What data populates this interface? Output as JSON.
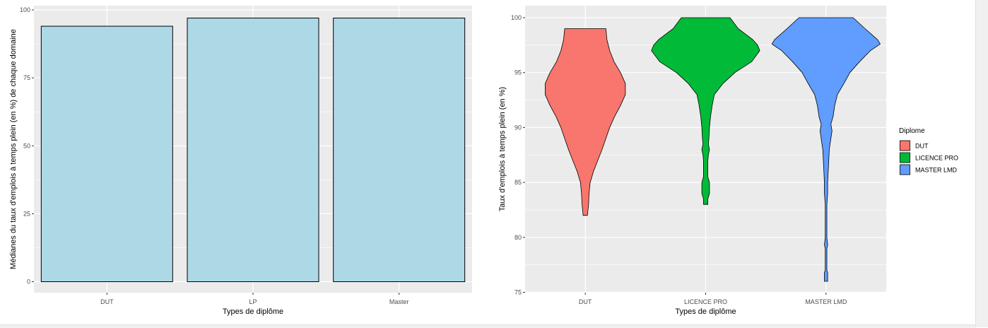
{
  "chart_data": [
    {
      "type": "bar",
      "xlabel": "Types de diplôme",
      "ylabel": "Médianes du taux d'emplois à temps plein (en %) de chaque domaine",
      "categories": [
        "DUT",
        "LP",
        "Master"
      ],
      "values": [
        94,
        97,
        97
      ],
      "ylim": [
        0,
        100
      ],
      "yticks": [
        0,
        25,
        50,
        75,
        100
      ],
      "grid": true,
      "bar_color": "#add8e6",
      "bar_outline": "#000000"
    },
    {
      "type": "violin",
      "xlabel": "Types de diplôme",
      "ylabel": "Taux d'emplois à temps plein (en %)",
      "categories": [
        "DUT",
        "LICENCE PRO",
        "MASTER LMD"
      ],
      "ylim": [
        75,
        100
      ],
      "yticks": [
        75,
        80,
        85,
        90,
        95,
        100
      ],
      "grid": true,
      "legend": {
        "title": "Diplome",
        "position": "right",
        "items": [
          {
            "label": "DUT",
            "color": "#F8766D"
          },
          {
            "label": "LICENCE PRO",
            "color": "#00BA38"
          },
          {
            "label": "MASTER LMD",
            "color": "#619CFF"
          }
        ]
      },
      "series": [
        {
          "name": "DUT",
          "color": "#F8766D",
          "profile": [
            [
              82,
              0.04
            ],
            [
              83,
              0.06
            ],
            [
              84,
              0.07
            ],
            [
              85,
              0.09
            ],
            [
              86,
              0.15
            ],
            [
              87,
              0.23
            ],
            [
              88,
              0.31
            ],
            [
              89,
              0.38
            ],
            [
              90,
              0.45
            ],
            [
              91,
              0.54
            ],
            [
              92,
              0.65
            ],
            [
              93,
              0.74
            ],
            [
              94,
              0.74
            ],
            [
              95,
              0.65
            ],
            [
              96,
              0.53
            ],
            [
              97,
              0.45
            ],
            [
              98,
              0.4
            ],
            [
              99,
              0.38
            ]
          ]
        },
        {
          "name": "LICENCE PRO",
          "color": "#00BA38",
          "profile": [
            [
              83,
              0.04
            ],
            [
              83.5,
              0.04
            ],
            [
              84,
              0.07
            ],
            [
              85,
              0.07
            ],
            [
              85.5,
              0.04
            ],
            [
              86,
              0.04
            ],
            [
              87,
              0.04
            ],
            [
              87.5,
              0.05
            ],
            [
              88,
              0.07
            ],
            [
              88.5,
              0.05
            ],
            [
              89,
              0.06
            ],
            [
              90,
              0.07
            ],
            [
              91,
              0.09
            ],
            [
              92,
              0.12
            ],
            [
              93,
              0.16
            ],
            [
              94,
              0.32
            ],
            [
              95,
              0.54
            ],
            [
              96,
              0.85
            ],
            [
              97,
              1.0
            ],
            [
              97.5,
              0.96
            ],
            [
              98,
              0.87
            ],
            [
              99,
              0.6
            ],
            [
              100,
              0.45
            ]
          ]
        },
        {
          "name": "MASTER LMD",
          "color": "#619CFF",
          "profile": [
            [
              76,
              0.03
            ],
            [
              76.8,
              0.03
            ],
            [
              77,
              0.015
            ],
            [
              79,
              0.015
            ],
            [
              79.3,
              0.03
            ],
            [
              80,
              0.015
            ],
            [
              83,
              0.015
            ],
            [
              84,
              0.03
            ],
            [
              85,
              0.03
            ],
            [
              86,
              0.04
            ],
            [
              87,
              0.05
            ],
            [
              88,
              0.06
            ],
            [
              89,
              0.09
            ],
            [
              89.7,
              0.11
            ],
            [
              90.3,
              0.09
            ],
            [
              91,
              0.13
            ],
            [
              92,
              0.16
            ],
            [
              93,
              0.21
            ],
            [
              94,
              0.33
            ],
            [
              95,
              0.44
            ],
            [
              96,
              0.62
            ],
            [
              97,
              0.82
            ],
            [
              97.6,
              1.0
            ],
            [
              98,
              0.95
            ],
            [
              99,
              0.72
            ],
            [
              100,
              0.5
            ]
          ]
        }
      ]
    }
  ]
}
